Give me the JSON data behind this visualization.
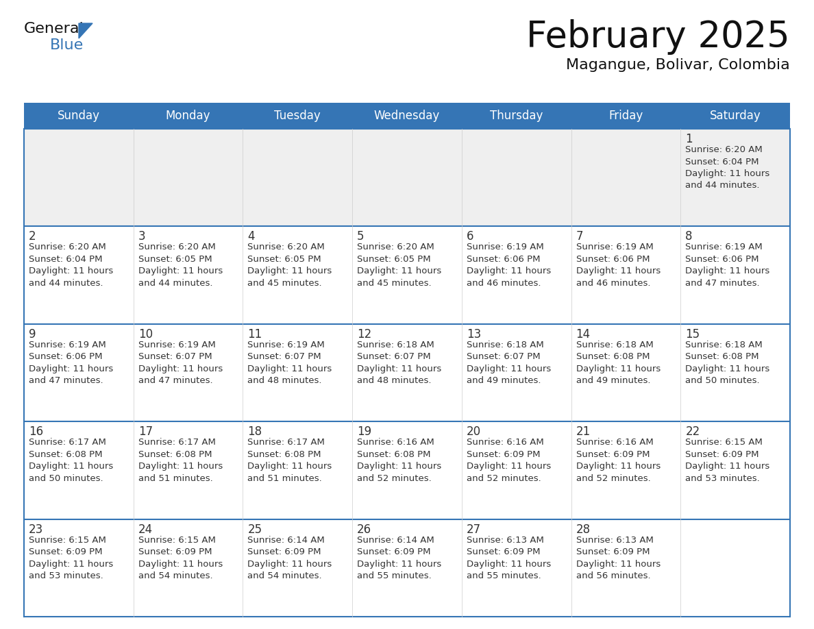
{
  "title": "February 2025",
  "subtitle": "Magangue, Bolivar, Colombia",
  "header_color": "#3575b5",
  "header_text_color": "#ffffff",
  "cell_bg_color_white": "#ffffff",
  "cell_bg_color_gray": "#efefef",
  "border_color": "#3575b5",
  "text_color_dark": "#333333",
  "text_color_info": "#333333",
  "day_names": [
    "Sunday",
    "Monday",
    "Tuesday",
    "Wednesday",
    "Thursday",
    "Friday",
    "Saturday"
  ],
  "title_color": "#111111",
  "subtitle_color": "#111111",
  "days": [
    {
      "day": 1,
      "col": 6,
      "row": 0,
      "sunrise": "6:20 AM",
      "sunset": "6:04 PM",
      "daylight_hours": 11,
      "daylight_minutes": 44
    },
    {
      "day": 2,
      "col": 0,
      "row": 1,
      "sunrise": "6:20 AM",
      "sunset": "6:04 PM",
      "daylight_hours": 11,
      "daylight_minutes": 44
    },
    {
      "day": 3,
      "col": 1,
      "row": 1,
      "sunrise": "6:20 AM",
      "sunset": "6:05 PM",
      "daylight_hours": 11,
      "daylight_minutes": 44
    },
    {
      "day": 4,
      "col": 2,
      "row": 1,
      "sunrise": "6:20 AM",
      "sunset": "6:05 PM",
      "daylight_hours": 11,
      "daylight_minutes": 45
    },
    {
      "day": 5,
      "col": 3,
      "row": 1,
      "sunrise": "6:20 AM",
      "sunset": "6:05 PM",
      "daylight_hours": 11,
      "daylight_minutes": 45
    },
    {
      "day": 6,
      "col": 4,
      "row": 1,
      "sunrise": "6:19 AM",
      "sunset": "6:06 PM",
      "daylight_hours": 11,
      "daylight_minutes": 46
    },
    {
      "day": 7,
      "col": 5,
      "row": 1,
      "sunrise": "6:19 AM",
      "sunset": "6:06 PM",
      "daylight_hours": 11,
      "daylight_minutes": 46
    },
    {
      "day": 8,
      "col": 6,
      "row": 1,
      "sunrise": "6:19 AM",
      "sunset": "6:06 PM",
      "daylight_hours": 11,
      "daylight_minutes": 47
    },
    {
      "day": 9,
      "col": 0,
      "row": 2,
      "sunrise": "6:19 AM",
      "sunset": "6:06 PM",
      "daylight_hours": 11,
      "daylight_minutes": 47
    },
    {
      "day": 10,
      "col": 1,
      "row": 2,
      "sunrise": "6:19 AM",
      "sunset": "6:07 PM",
      "daylight_hours": 11,
      "daylight_minutes": 47
    },
    {
      "day": 11,
      "col": 2,
      "row": 2,
      "sunrise": "6:19 AM",
      "sunset": "6:07 PM",
      "daylight_hours": 11,
      "daylight_minutes": 48
    },
    {
      "day": 12,
      "col": 3,
      "row": 2,
      "sunrise": "6:18 AM",
      "sunset": "6:07 PM",
      "daylight_hours": 11,
      "daylight_minutes": 48
    },
    {
      "day": 13,
      "col": 4,
      "row": 2,
      "sunrise": "6:18 AM",
      "sunset": "6:07 PM",
      "daylight_hours": 11,
      "daylight_minutes": 49
    },
    {
      "day": 14,
      "col": 5,
      "row": 2,
      "sunrise": "6:18 AM",
      "sunset": "6:08 PM",
      "daylight_hours": 11,
      "daylight_minutes": 49
    },
    {
      "day": 15,
      "col": 6,
      "row": 2,
      "sunrise": "6:18 AM",
      "sunset": "6:08 PM",
      "daylight_hours": 11,
      "daylight_minutes": 50
    },
    {
      "day": 16,
      "col": 0,
      "row": 3,
      "sunrise": "6:17 AM",
      "sunset": "6:08 PM",
      "daylight_hours": 11,
      "daylight_minutes": 50
    },
    {
      "day": 17,
      "col": 1,
      "row": 3,
      "sunrise": "6:17 AM",
      "sunset": "6:08 PM",
      "daylight_hours": 11,
      "daylight_minutes": 51
    },
    {
      "day": 18,
      "col": 2,
      "row": 3,
      "sunrise": "6:17 AM",
      "sunset": "6:08 PM",
      "daylight_hours": 11,
      "daylight_minutes": 51
    },
    {
      "day": 19,
      "col": 3,
      "row": 3,
      "sunrise": "6:16 AM",
      "sunset": "6:08 PM",
      "daylight_hours": 11,
      "daylight_minutes": 52
    },
    {
      "day": 20,
      "col": 4,
      "row": 3,
      "sunrise": "6:16 AM",
      "sunset": "6:09 PM",
      "daylight_hours": 11,
      "daylight_minutes": 52
    },
    {
      "day": 21,
      "col": 5,
      "row": 3,
      "sunrise": "6:16 AM",
      "sunset": "6:09 PM",
      "daylight_hours": 11,
      "daylight_minutes": 52
    },
    {
      "day": 22,
      "col": 6,
      "row": 3,
      "sunrise": "6:15 AM",
      "sunset": "6:09 PM",
      "daylight_hours": 11,
      "daylight_minutes": 53
    },
    {
      "day": 23,
      "col": 0,
      "row": 4,
      "sunrise": "6:15 AM",
      "sunset": "6:09 PM",
      "daylight_hours": 11,
      "daylight_minutes": 53
    },
    {
      "day": 24,
      "col": 1,
      "row": 4,
      "sunrise": "6:15 AM",
      "sunset": "6:09 PM",
      "daylight_hours": 11,
      "daylight_minutes": 54
    },
    {
      "day": 25,
      "col": 2,
      "row": 4,
      "sunrise": "6:14 AM",
      "sunset": "6:09 PM",
      "daylight_hours": 11,
      "daylight_minutes": 54
    },
    {
      "day": 26,
      "col": 3,
      "row": 4,
      "sunrise": "6:14 AM",
      "sunset": "6:09 PM",
      "daylight_hours": 11,
      "daylight_minutes": 55
    },
    {
      "day": 27,
      "col": 4,
      "row": 4,
      "sunrise": "6:13 AM",
      "sunset": "6:09 PM",
      "daylight_hours": 11,
      "daylight_minutes": 55
    },
    {
      "day": 28,
      "col": 5,
      "row": 4,
      "sunrise": "6:13 AM",
      "sunset": "6:09 PM",
      "daylight_hours": 11,
      "daylight_minutes": 56
    }
  ],
  "num_rows": 5,
  "num_cols": 7
}
